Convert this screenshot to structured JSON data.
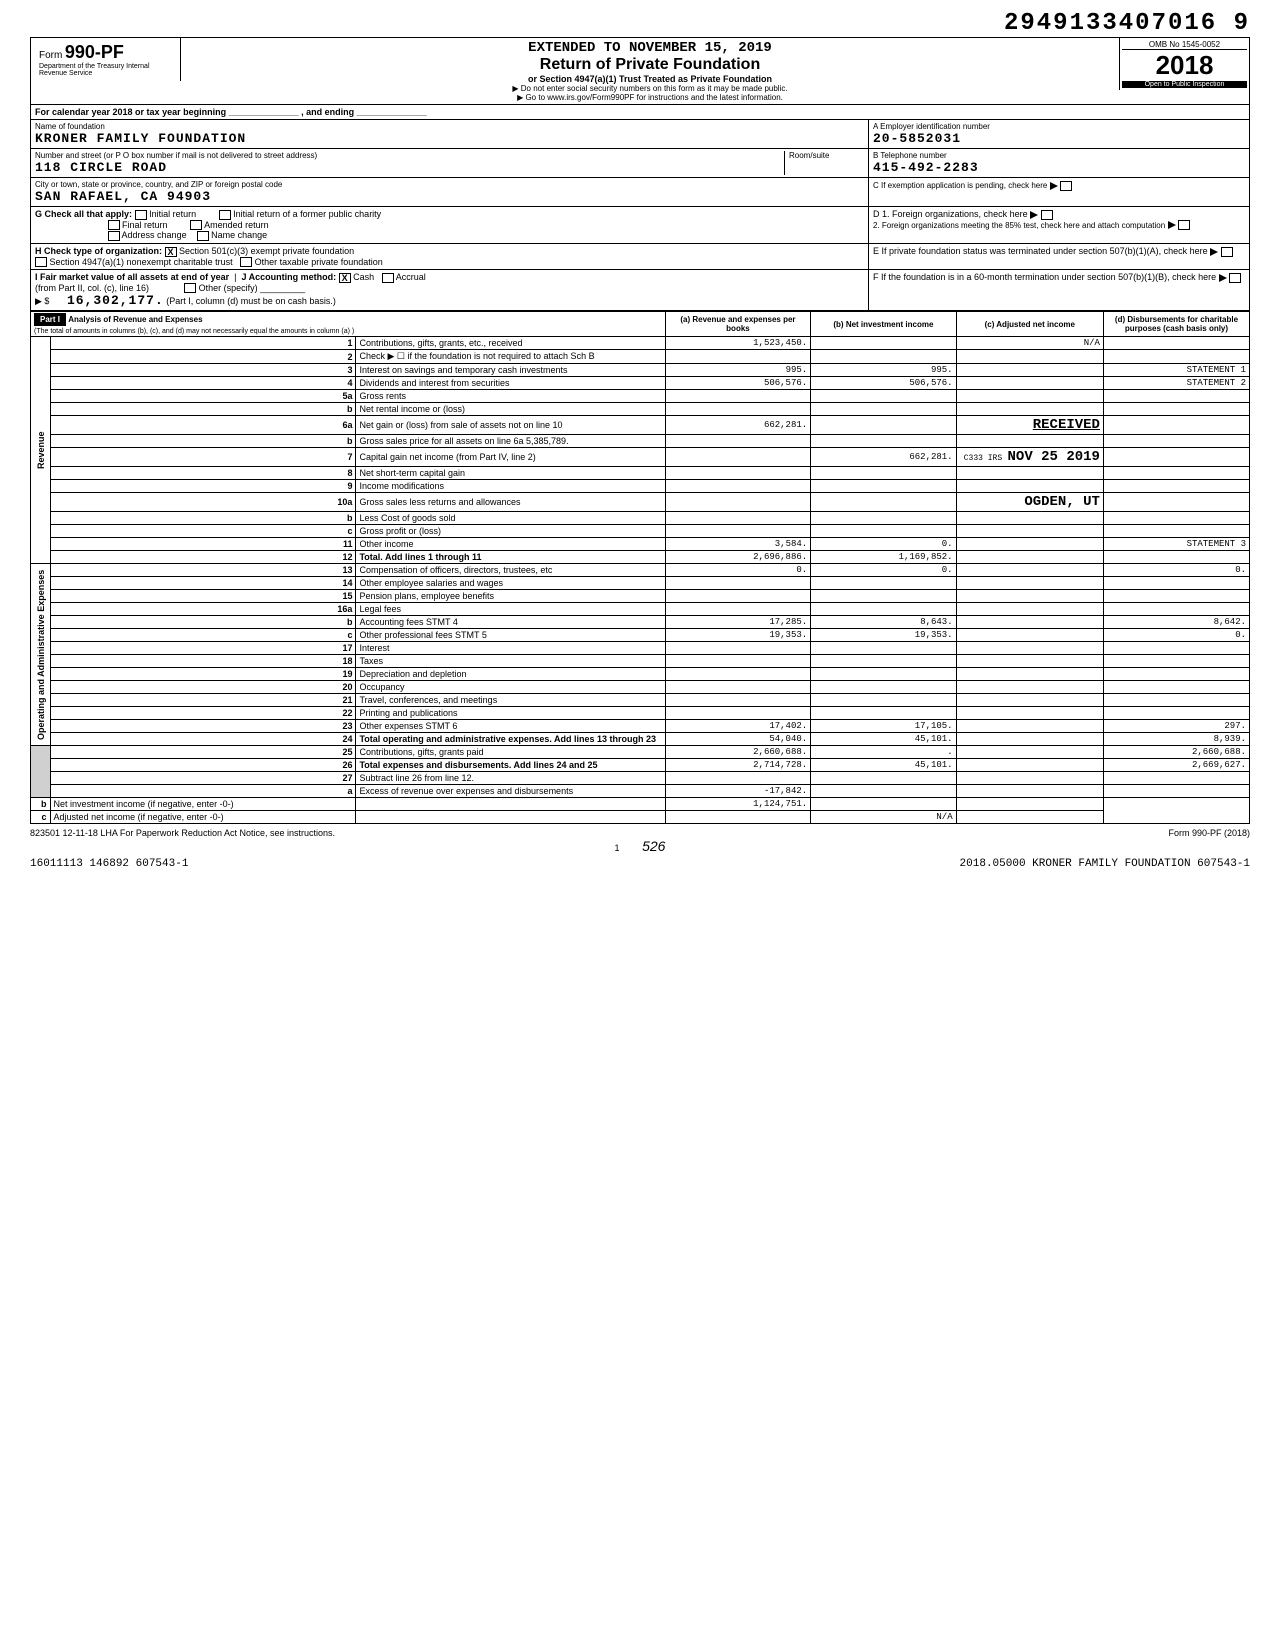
{
  "top_number": "2949133407016 9",
  "header": {
    "form_prefix": "Form",
    "form_number": "990-PF",
    "dept": "Department of the Treasury\nInternal Revenue Service",
    "extended": "EXTENDED TO NOVEMBER 15, 2019",
    "title": "Return of Private Foundation",
    "subtitle": "or Section 4947(a)(1) Trust Treated as Private Foundation",
    "arrow1": "▶ Do not enter social security numbers on this form as it may be made public.",
    "arrow2": "▶ Go to www.irs.gov/Form990PF for instructions and the latest information.",
    "omb": "OMB No 1545-0052",
    "year": "2018",
    "open": "Open to Public Inspection"
  },
  "cal_year": "For calendar year 2018 or tax year beginning ______________ , and ending ______________",
  "identity": {
    "name_label": "Name of foundation",
    "name": "KRONER FAMILY FOUNDATION",
    "addr_label": "Number and street (or P O box number if mail is not delivered to street address)",
    "addr": "118 CIRCLE ROAD",
    "room_label": "Room/suite",
    "city_label": "City or town, state or province, country, and ZIP or foreign postal code",
    "city": "SAN RAFAEL, CA  94903",
    "ein_label": "A Employer identification number",
    "ein": "20-5852031",
    "tel_label": "B Telephone number",
    "tel": "415-492-2283",
    "c_label": "C If exemption application is pending, check here"
  },
  "checks": {
    "g_label": "G  Check all that apply:",
    "g_opts": [
      "Initial return",
      "Final return",
      "Address change",
      "Initial return of a former public charity",
      "Amended return",
      "Name change"
    ],
    "h_label": "H  Check type of organization:",
    "h_501": "Section 501(c)(3) exempt private foundation",
    "h_4947": "Section 4947(a)(1) nonexempt charitable trust",
    "h_other": "Other taxable private foundation",
    "i_label": "I  Fair market value of all assets at end of year",
    "i_sub": "(from Part II, col. (c), line 16)",
    "i_val": "16,302,177.",
    "j_label": "J  Accounting method:",
    "j_cash": "Cash",
    "j_accrual": "Accrual",
    "j_other": "Other (specify)",
    "j_note": "(Part I, column (d) must be on cash basis.)",
    "d_label": "D 1. Foreign organizations, check here",
    "d2_label": "2. Foreign organizations meeting the 85% test, check here and attach computation",
    "e_label": "E  If private foundation status was terminated under section 507(b)(1)(A), check here",
    "f_label": "F  If the foundation is in a 60-month termination under section 507(b)(1)(B), check here"
  },
  "part1": {
    "label": "Part I",
    "title": "Analysis of Revenue and Expenses",
    "note": "(The total of amounts in columns (b), (c), and (d) may not necessarily equal the amounts in column (a) )",
    "col_a": "(a) Revenue and expenses per books",
    "col_b": "(b) Net investment income",
    "col_c": "(c) Adjusted net income",
    "col_d": "(d) Disbursements for charitable purposes (cash basis only)"
  },
  "side_revenue": "Revenue",
  "side_expenses": "Operating and Administrative Expenses",
  "rows": [
    {
      "n": "1",
      "d": "Contributions, gifts, grants, etc., received",
      "a": "1,523,450.",
      "b": "",
      "c": "N/A",
      "e": ""
    },
    {
      "n": "2",
      "d": "Check ▶ ☐ if the foundation is not required to attach Sch B",
      "a": "",
      "b": "",
      "c": "",
      "e": ""
    },
    {
      "n": "3",
      "d": "Interest on savings and temporary cash investments",
      "a": "995.",
      "b": "995.",
      "c": "",
      "e": "STATEMENT 1"
    },
    {
      "n": "4",
      "d": "Dividends and interest from securities",
      "a": "506,576.",
      "b": "506,576.",
      "c": "",
      "e": "STATEMENT 2"
    },
    {
      "n": "5a",
      "d": "Gross rents",
      "a": "",
      "b": "",
      "c": "",
      "e": ""
    },
    {
      "n": "b",
      "d": "Net rental income or (loss)",
      "a": "",
      "b": "",
      "c": "",
      "e": ""
    },
    {
      "n": "6a",
      "d": "Net gain or (loss) from sale of assets not on line 10",
      "a": "662,281.",
      "b": "",
      "c": "",
      "e": ""
    },
    {
      "n": "b",
      "d": "Gross sales price for all assets on line 6a   5,385,789.",
      "a": "",
      "b": "",
      "c": "",
      "e": ""
    },
    {
      "n": "7",
      "d": "Capital gain net income (from Part IV, line 2)",
      "a": "",
      "b": "662,281.",
      "c": "",
      "e": ""
    },
    {
      "n": "8",
      "d": "Net short-term capital gain",
      "a": "",
      "b": "",
      "c": "",
      "e": ""
    },
    {
      "n": "9",
      "d": "Income modifications",
      "a": "",
      "b": "",
      "c": "",
      "e": ""
    },
    {
      "n": "10a",
      "d": "Gross sales less returns and allowances",
      "a": "",
      "b": "",
      "c": "",
      "e": ""
    },
    {
      "n": "b",
      "d": "Less Cost of goods sold",
      "a": "",
      "b": "",
      "c": "",
      "e": ""
    },
    {
      "n": "c",
      "d": "Gross profit or (loss)",
      "a": "",
      "b": "",
      "c": "",
      "e": ""
    },
    {
      "n": "11",
      "d": "Other income",
      "a": "3,584.",
      "b": "0.",
      "c": "",
      "e": "STATEMENT 3"
    },
    {
      "n": "12",
      "d": "Total. Add lines 1 through 11",
      "a": "2,696,886.",
      "b": "1,169,852.",
      "c": "",
      "e": ""
    },
    {
      "n": "13",
      "d": "Compensation of officers, directors, trustees, etc",
      "a": "0.",
      "b": "0.",
      "c": "",
      "e": "0."
    },
    {
      "n": "14",
      "d": "Other employee salaries and wages",
      "a": "",
      "b": "",
      "c": "",
      "e": ""
    },
    {
      "n": "15",
      "d": "Pension plans, employee benefits",
      "a": "",
      "b": "",
      "c": "",
      "e": ""
    },
    {
      "n": "16a",
      "d": "Legal fees",
      "a": "",
      "b": "",
      "c": "",
      "e": ""
    },
    {
      "n": "b",
      "d": "Accounting fees              STMT 4",
      "a": "17,285.",
      "b": "8,643.",
      "c": "",
      "e": "8,642."
    },
    {
      "n": "c",
      "d": "Other professional fees      STMT 5",
      "a": "19,353.",
      "b": "19,353.",
      "c": "",
      "e": "0."
    },
    {
      "n": "17",
      "d": "Interest",
      "a": "",
      "b": "",
      "c": "",
      "e": ""
    },
    {
      "n": "18",
      "d": "Taxes",
      "a": "",
      "b": "",
      "c": "",
      "e": ""
    },
    {
      "n": "19",
      "d": "Depreciation and depletion",
      "a": "",
      "b": "",
      "c": "",
      "e": ""
    },
    {
      "n": "20",
      "d": "Occupancy",
      "a": "",
      "b": "",
      "c": "",
      "e": ""
    },
    {
      "n": "21",
      "d": "Travel, conferences, and meetings",
      "a": "",
      "b": "",
      "c": "",
      "e": ""
    },
    {
      "n": "22",
      "d": "Printing and publications",
      "a": "",
      "b": "",
      "c": "",
      "e": ""
    },
    {
      "n": "23",
      "d": "Other expenses               STMT 6",
      "a": "17,402.",
      "b": "17,105.",
      "c": "",
      "e": "297."
    },
    {
      "n": "24",
      "d": "Total operating and administrative expenses. Add lines 13 through 23",
      "a": "54,040.",
      "b": "45,101.",
      "c": "",
      "e": "8,939."
    },
    {
      "n": "25",
      "d": "Contributions, gifts, grants paid",
      "a": "2,660,688.",
      "b": ".",
      "c": "",
      "e": "2,660,688."
    },
    {
      "n": "26",
      "d": "Total expenses and disbursements. Add lines 24 and 25",
      "a": "2,714,728.",
      "b": "45,101.",
      "c": "",
      "e": "2,669,627."
    },
    {
      "n": "27",
      "d": "Subtract line 26 from line 12.",
      "a": "",
      "b": "",
      "c": "",
      "e": ""
    },
    {
      "n": "a",
      "d": "Excess of revenue over expenses and disbursements",
      "a": "-17,842.",
      "b": "",
      "c": "",
      "e": ""
    },
    {
      "n": "b",
      "d": "Net investment income (if negative, enter -0-)",
      "a": "",
      "b": "1,124,751.",
      "c": "",
      "e": ""
    },
    {
      "n": "c",
      "d": "Adjusted net income (if negative, enter -0-)",
      "a": "",
      "b": "",
      "c": "N/A",
      "e": ""
    }
  ],
  "received": {
    "text": "RECEIVED",
    "date": "NOV 25 2019",
    "office": "OGDEN, UT",
    "code": "C333 IRS"
  },
  "footer": {
    "lha": "823501 12-11-18   LHA  For Paperwork Reduction Act Notice, see instructions.",
    "page": "1",
    "hand": "526",
    "form": "Form 990-PF (2018)",
    "bottom_left": "16011113 146892 607543-1",
    "bottom_right": "2018.05000 KRONER FAMILY FOUNDATION  607543-1"
  }
}
